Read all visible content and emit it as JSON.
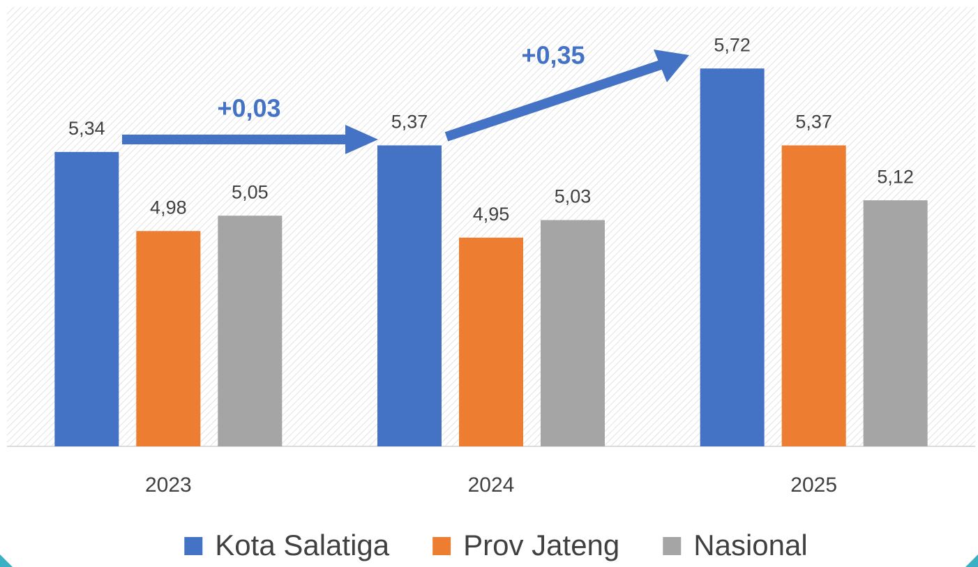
{
  "chart_data": {
    "type": "bar",
    "categories": [
      "2023",
      "2024",
      "2025"
    ],
    "series": [
      {
        "name": "Kota Salatiga",
        "color": "#4472c4",
        "values": [
          5.34,
          5.37,
          5.72
        ],
        "value_labels": [
          "5,34",
          "5,37",
          "5,72"
        ]
      },
      {
        "name": "Prov Jateng",
        "color": "#ed7d31",
        "values": [
          4.98,
          4.95,
          5.37
        ],
        "value_labels": [
          "4,98",
          "4,95",
          "5,37"
        ]
      },
      {
        "name": "Nasional",
        "color": "#a5a5a5",
        "values": [
          5.05,
          5.03,
          5.12
        ],
        "value_labels": [
          "5,05",
          "5,03",
          "5,12"
        ]
      }
    ],
    "ylim": [
      4,
      6
    ],
    "legend": "bottom",
    "annotations": [
      {
        "text": "+0,03"
      },
      {
        "text": "+0,35"
      }
    ]
  }
}
